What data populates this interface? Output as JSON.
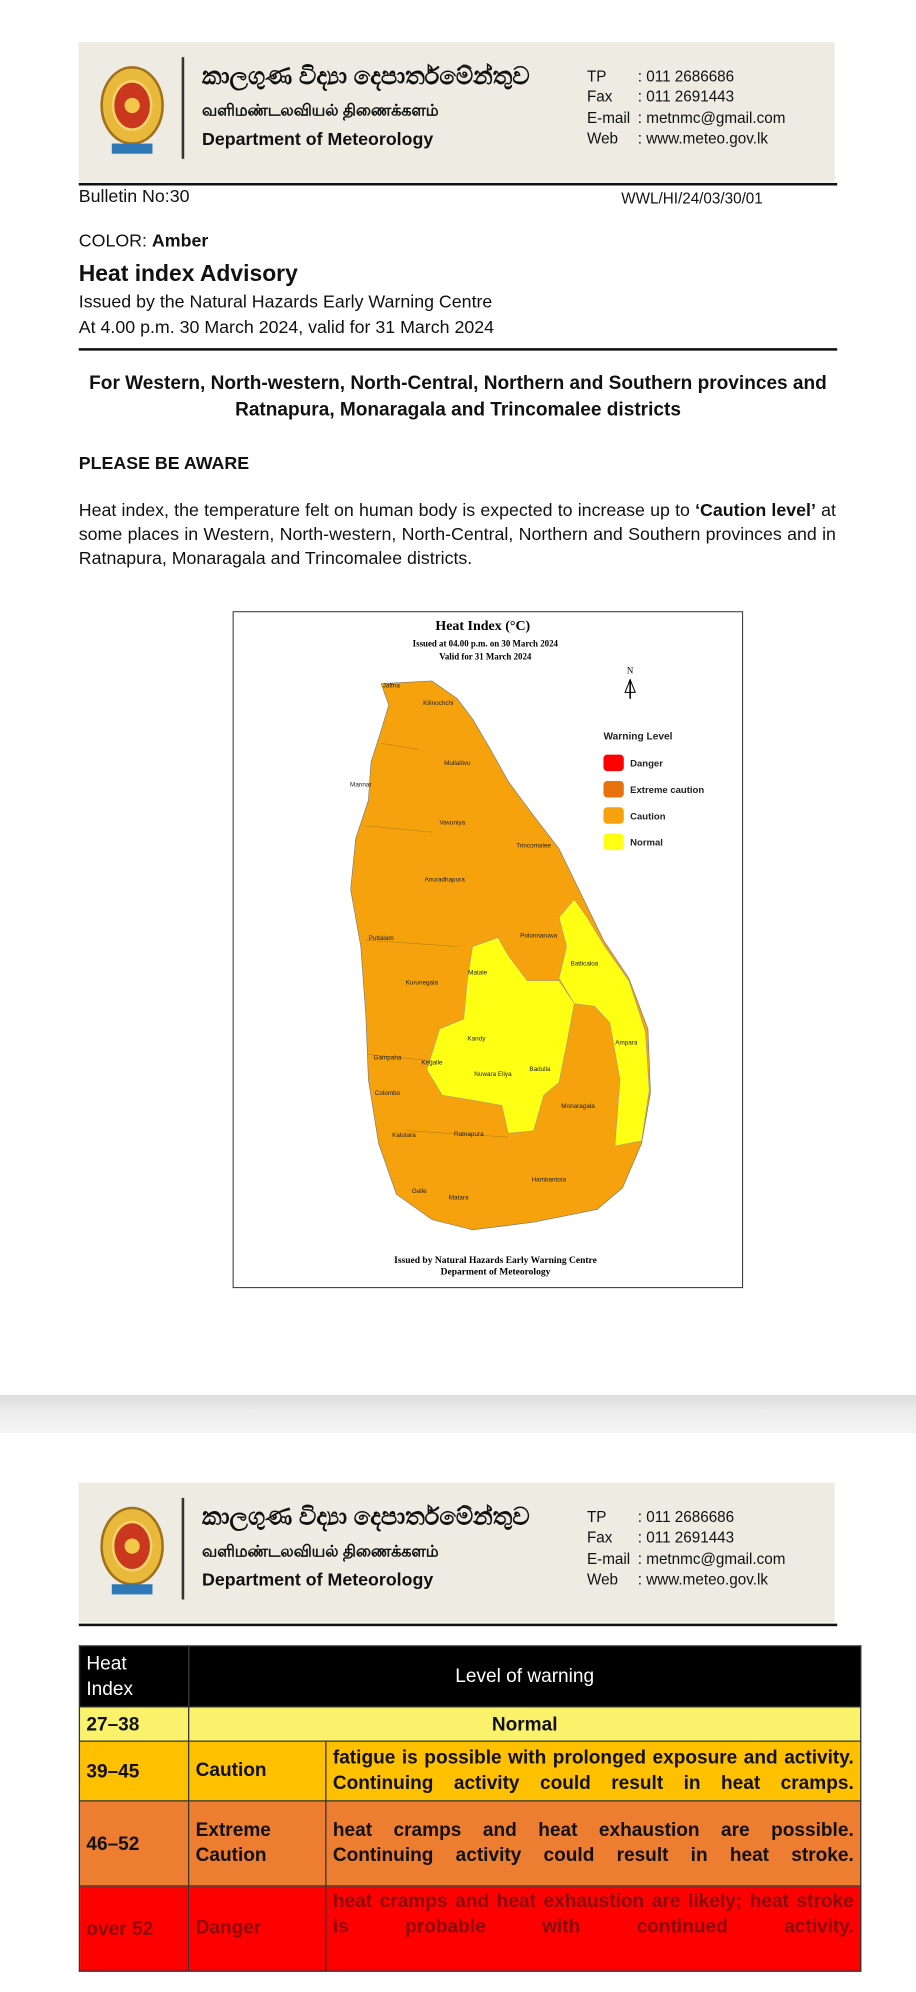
{
  "page1": {
    "header": {
      "sinhala": "කාලගුණ විද්‍යා දෙපාර්තමේන්තුව",
      "tamil": "வளிமண்டலவியல் திணைக்களம்",
      "english": "Department of Meteorology",
      "contacts": [
        {
          "label": "TP",
          "value": ": 011 2686686"
        },
        {
          "label": "Fax",
          "value": ": 011 2691443"
        },
        {
          "label": "E-mail",
          "value": ": metnmc@gmail.com"
        },
        {
          "label": "Web",
          "value": ": www.meteo.gov.lk"
        }
      ]
    },
    "bulletin_no": "Bulletin No:30",
    "reference": "WWL/HI/24/03/30/01",
    "color_label": "COLOR: ",
    "color_value": "Amber",
    "title": "Heat index Advisory",
    "issued_by": "Issued by the Natural Hazards Early Warning Centre",
    "issued_at": "At 4.00 p.m. 30 March 2024, valid for 31 March 2024",
    "regions": "For Western, North-western, North-Central, Northern and Southern provinces and Ratnapura, Monaragala and Trincomalee districts",
    "notice": "PLEASE BE AWARE",
    "paragraph": [
      "Heat index, the temperature felt on human body is expected to increase up to ",
      "‘Caution level’",
      " at some places in Western, North-western, North-Central, Northern and Southern provinces and in Ratnapura, Monaragala and Trincomalee districts."
    ],
    "map": {
      "title": "Heat Index (°C)",
      "issued": "Issued at 04.00 p.m. on 30 March 2024",
      "valid": "Valid for  31 March 2024",
      "north": "N",
      "legend_title": "Warning Level",
      "legend": [
        {
          "name": "Danger",
          "color": "#ff0000"
        },
        {
          "name": "Extreme caution",
          "color": "#e8730c"
        },
        {
          "name": "Caution",
          "color": "#f5a20d"
        },
        {
          "name": "Normal",
          "color": "#ffff14"
        }
      ],
      "districts": [
        "Jaffna",
        "Kilinochchi",
        "Mullaitivu",
        "Mannar",
        "Vavuniya",
        "Trincomalee",
        "Anuradhapura",
        "Puttalam",
        "Polonnaruwa",
        "Batticaloa",
        "Matale",
        "Kurunegala",
        "Ampara",
        "Kandy",
        "Kegalle",
        "Gampaha",
        "Nuwara Eliya",
        "Badulla",
        "Colombo",
        "Monaragala",
        "Kalutara",
        "Ratnapura",
        "Hambantota",
        "Galle",
        "Matara"
      ],
      "footer": [
        "Issued by Natural Hazards Early Warning Centre",
        "Deparment of Meteorology"
      ]
    }
  },
  "page2": {
    "header": {
      "sinhala": "කාලගුණ විද්‍යා දෙපාර්තමේන්තුව",
      "tamil": "வளிமண்டலவியல் திணைக்களம்",
      "english": "Department of Meteorology",
      "contacts": [
        {
          "label": "TP",
          "value": ": 011 2686686"
        },
        {
          "label": "Fax",
          "value": ": 011 2691443"
        },
        {
          "label": "E-mail",
          "value": ": metnmc@gmail.com"
        },
        {
          "label": "Web",
          "value": ": www.meteo.gov.lk"
        }
      ]
    },
    "table": {
      "header": [
        "Heat Index",
        "Level of warning"
      ],
      "rows": [
        [
          "27–38",
          "Normal"
        ],
        [
          "39–45",
          "Caution",
          "fatigue is possible with prolonged exposure and activity. Continuing activity could result in heat cramps."
        ],
        [
          "46–52",
          "Extreme Caution",
          "heat cramps and heat exhaustion are possible. Continuing activity could result in heat stroke."
        ],
        [
          "over 52",
          "Danger",
          "heat cramps and heat exhaustion are likely; heat stroke is probable with continued activity."
        ]
      ]
    }
  }
}
